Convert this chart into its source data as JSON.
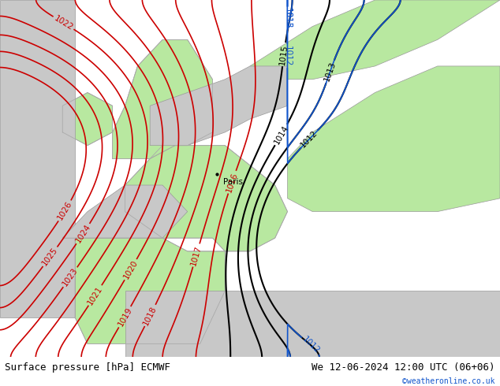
{
  "title_left": "Surface pressure [hPa] ECMWF",
  "title_right": "We 12-06-2024 12:00 UTC (06+06)",
  "watermark": "©weatheronline.co.uk",
  "green_color": "#b8e8a0",
  "gray_color": "#d0d0d0",
  "sea_gray": "#c8c8c8",
  "coast_color": "#aaaaaa",
  "red": "#cc0000",
  "black": "#000000",
  "blue": "#1155cc",
  "label_fontsize": 7.5,
  "footer_fontsize": 9,
  "paris_label": "Paris",
  "figwidth": 6.34,
  "figheight": 4.9,
  "dpi": 100
}
